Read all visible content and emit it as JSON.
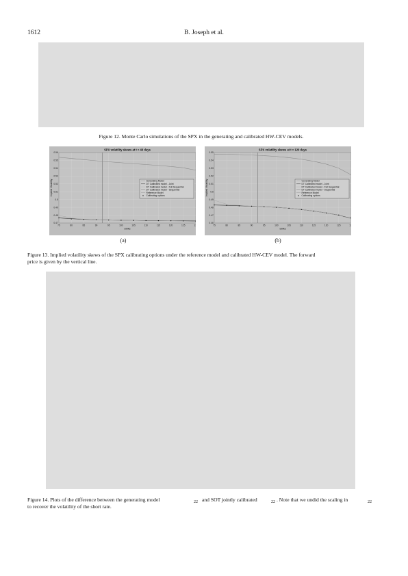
{
  "header": {
    "page_number": "1612",
    "authors": "B. Joseph et al."
  },
  "figures": {
    "fig12_caption": "Figure 12.  Monte Carlo simulations of the SPX in the generating and calibrated HW-CEV models.",
    "fig13_caption_line1": "Figure 13.  Implied volatility skews of the SPX calibrating options under the reference model and calibrated HW-CEV model. The forward",
    "fig13_caption_line2": "price is given by the vertical line.",
    "sub_a": "(a)",
    "sub_b": "(b)",
    "fig14_caption_part1": "Figure 14.  Plots of the difference between the generating model",
    "fig14_caption_part2": "and SOT jointly calibrated",
    "fig14_caption_part3": ". Note that we undid the scaling in",
    "fig14_caption_line2": "to recover the volatility of the short rate.",
    "subscript_22": "22"
  },
  "chart_data": [
    {
      "type": "line",
      "title": "SPX volatility skews at t = 40 days",
      "xlabel": "Strike",
      "ylabel": "Implied Volatility",
      "xlim": [
        75,
        130
      ],
      "ylim": [
        0.47,
        0.56
      ],
      "x_ticks": [
        "75",
        "80",
        "85",
        "90",
        "95",
        "100",
        "105",
        "110",
        "115",
        "120",
        "125",
        "130"
      ],
      "y_ticks": [
        "0.47",
        "0.48",
        "0.49",
        "0.5",
        "0.51",
        "0.52",
        "0.53",
        "0.54",
        "0.55",
        "0.56"
      ],
      "forward_price": 92.5,
      "grid": true,
      "legend_position": "right",
      "legend": [
        "Generating Model",
        "DT Calibrated model - Joint",
        "DT Calibrated model - Full Sequential",
        "DT Calibrated model - Sequential",
        "Reference Model",
        "Calibrating options"
      ],
      "series": [
        {
          "x": [
            75,
            80,
            85,
            90,
            95,
            100,
            105,
            110,
            115,
            120,
            125,
            130
          ],
          "y": [
            0.554,
            0.5525,
            0.551,
            0.5495,
            0.5482,
            0.547,
            0.5458,
            0.5447,
            0.5435,
            0.5422,
            0.5405,
            0.5375
          ]
        },
        {
          "x": [
            75,
            80,
            85,
            90,
            95,
            100,
            105,
            110,
            115,
            120,
            125,
            130
          ],
          "y": [
            0.4765,
            0.4755,
            0.4747,
            0.4742,
            0.4738,
            0.4735,
            0.4733,
            0.4731,
            0.473,
            0.4729,
            0.4728,
            0.4727
          ]
        },
        {
          "x": [
            75,
            80,
            85,
            90,
            95,
            100,
            105,
            110,
            115,
            120,
            125,
            130
          ],
          "y": [
            0.48,
            0.4762,
            0.475,
            0.4743,
            0.4738,
            0.4735,
            0.4733,
            0.4731,
            0.473,
            0.4728,
            0.4724,
            0.4718
          ]
        }
      ],
      "calibrating_options": {
        "x": [
          75,
          80,
          85,
          90,
          95,
          100,
          105,
          110,
          115,
          120,
          125,
          130
        ],
        "y": [
          0.4765,
          0.4752,
          0.4745,
          0.4741,
          0.4738,
          0.4735,
          0.4733,
          0.4731,
          0.473,
          0.4729,
          0.4727,
          0.4725
        ]
      }
    },
    {
      "type": "line",
      "title": "SPX volatility skews at t = 120 days",
      "xlabel": "Strike",
      "ylabel": "Implied Volatility",
      "xlim": [
        75,
        130
      ],
      "ylim": [
        0.46,
        0.55
      ],
      "x_ticks": [
        "75",
        "80",
        "85",
        "90",
        "95",
        "100",
        "105",
        "110",
        "115",
        "120",
        "125",
        "130"
      ],
      "y_ticks": [
        "0.46",
        "0.47",
        "0.48",
        "0.49",
        "0.5",
        "0.51",
        "0.52",
        "0.53",
        "0.54",
        "0.55"
      ],
      "forward_price": 92.5,
      "grid": true,
      "legend_position": "right",
      "legend": [
        "Generating Model",
        "DT Calibrated model - Joint",
        "DT Calibrated model - Full Sequential",
        "DT Calibrated model - Sequential",
        "Reference Model",
        "Calibrating options"
      ],
      "series": [
        {
          "x": [
            75,
            80,
            85,
            90,
            95,
            100,
            105,
            110,
            115,
            120,
            125,
            130
          ],
          "y": [
            0.548,
            0.5478,
            0.5474,
            0.5468,
            0.546,
            0.545,
            0.5435,
            0.5415,
            0.5388,
            0.5352,
            0.53,
            0.5215
          ]
        },
        {
          "x": [
            75,
            80,
            85,
            90,
            95,
            100,
            105,
            110,
            115,
            120,
            125,
            130
          ],
          "y": [
            0.483,
            0.4826,
            0.482,
            0.4815,
            0.4808,
            0.48,
            0.4788,
            0.4772,
            0.4752,
            0.4728,
            0.47,
            0.466
          ]
        },
        {
          "x": [
            75,
            80,
            85,
            90,
            95,
            100,
            105,
            110,
            115,
            120,
            125,
            130
          ],
          "y": [
            0.489,
            0.484,
            0.4825,
            0.4816,
            0.4808,
            0.48,
            0.4788,
            0.4772,
            0.4752,
            0.4728,
            0.4698,
            0.4655
          ]
        }
      ],
      "calibrating_options": {
        "x": [
          75,
          80,
          85,
          90,
          95,
          100,
          105,
          110,
          115,
          120,
          125,
          130
        ],
        "y": [
          0.483,
          0.4825,
          0.4819,
          0.4814,
          0.4808,
          0.48,
          0.4788,
          0.4772,
          0.4752,
          0.4728,
          0.4702,
          0.4665
        ]
      }
    }
  ]
}
